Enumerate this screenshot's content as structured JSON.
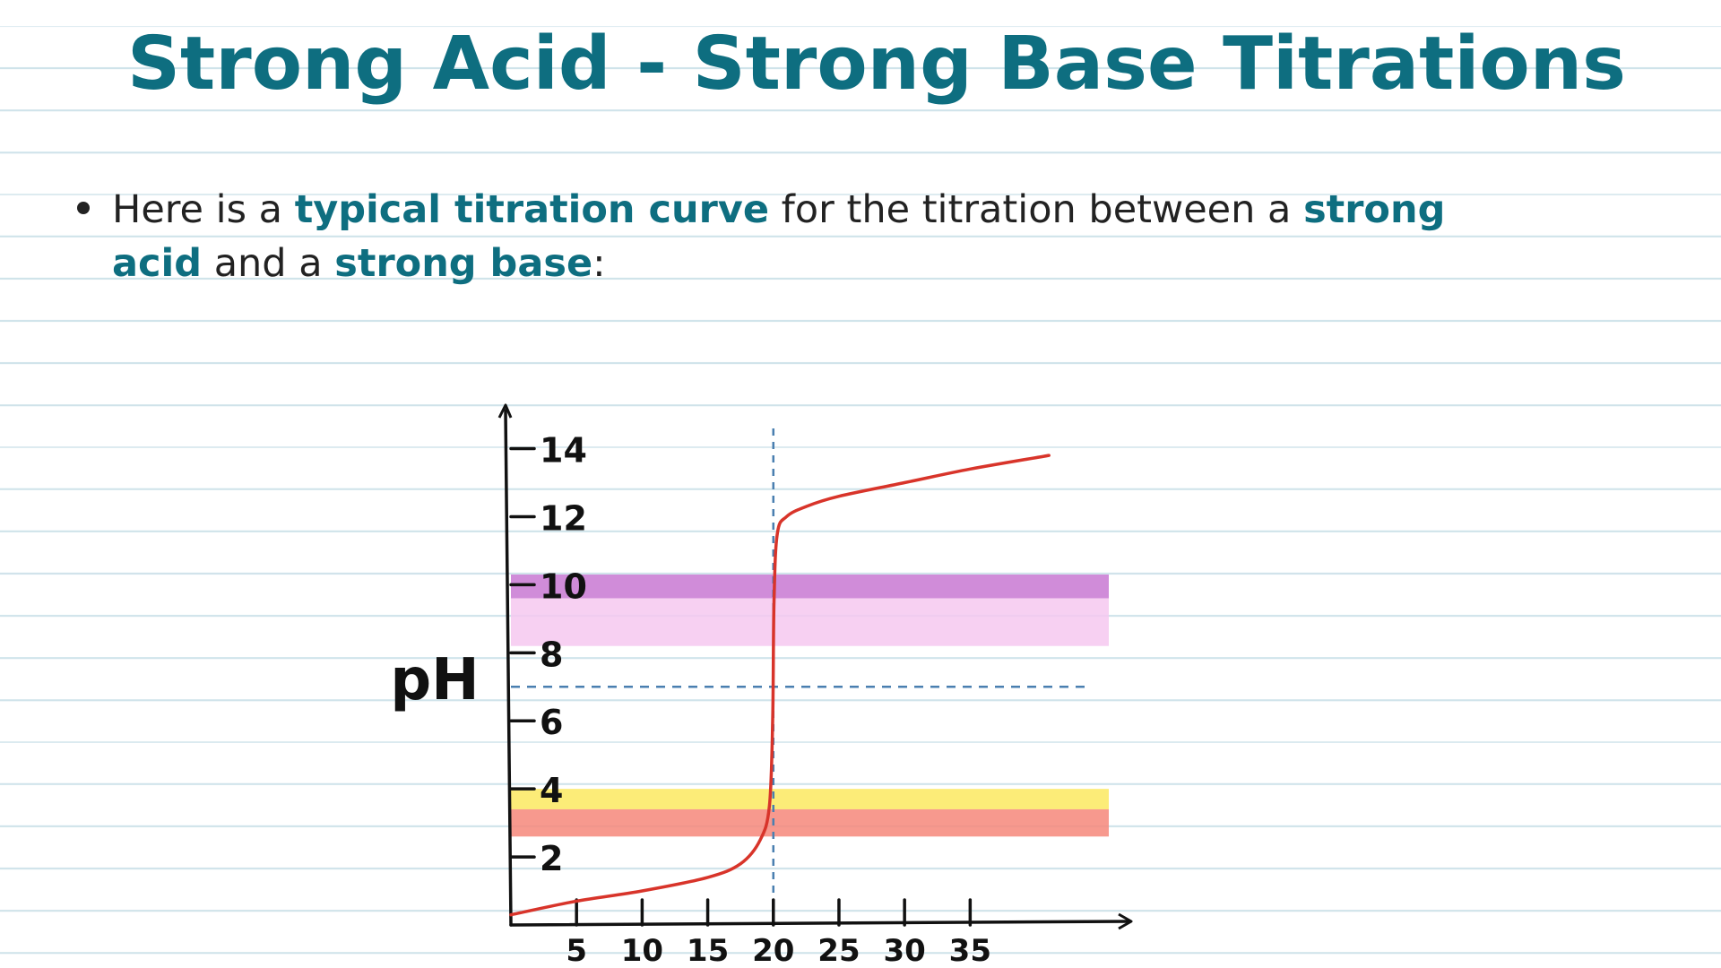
{
  "title": "Strong Acid - Strong Base Titrations",
  "bullet": {
    "p1": "Here is a ",
    "h1": "typical titration curve",
    "p2": " for the titration between a ",
    "h2": "strong acid",
    "p3": " and a ",
    "h3": "strong base",
    "p4": ":"
  },
  "chart_data": {
    "type": "line",
    "title": "",
    "xlabel": "",
    "ylabel": "pH",
    "xlim": [
      0,
      47
    ],
    "ylim": [
      0,
      15.2
    ],
    "x_ticks": [
      5,
      10,
      15,
      20,
      25,
      30,
      35
    ],
    "y_ticks": [
      2,
      4,
      6,
      8,
      10,
      12,
      14
    ],
    "grid": false,
    "series": [
      {
        "color": "#d8342a",
        "points": [
          [
            0,
            0.3
          ],
          [
            5,
            0.7
          ],
          [
            10,
            1.0
          ],
          [
            15,
            1.4
          ],
          [
            17.5,
            1.8
          ],
          [
            19,
            2.5
          ],
          [
            19.7,
            3.5
          ],
          [
            19.95,
            6.0
          ],
          [
            20.05,
            9.5
          ],
          [
            20.3,
            11.5
          ],
          [
            21,
            12.0
          ],
          [
            22.5,
            12.3
          ],
          [
            25,
            12.6
          ],
          [
            30,
            13.0
          ],
          [
            35,
            13.4
          ],
          [
            41,
            13.8
          ]
        ]
      }
    ],
    "equivalence_volume": 20,
    "neutral_ph": 7,
    "indicator_bands": [
      {
        "ymin": 9.6,
        "ymax": 10.3,
        "color": "#c878d2"
      },
      {
        "ymin": 8.2,
        "ymax": 9.6,
        "color": "#f6c8f0"
      },
      {
        "ymin": 3.4,
        "ymax": 4.0,
        "color": "#fbe960"
      },
      {
        "ymin": 2.6,
        "ymax": 3.4,
        "color": "#f6877a"
      }
    ]
  }
}
